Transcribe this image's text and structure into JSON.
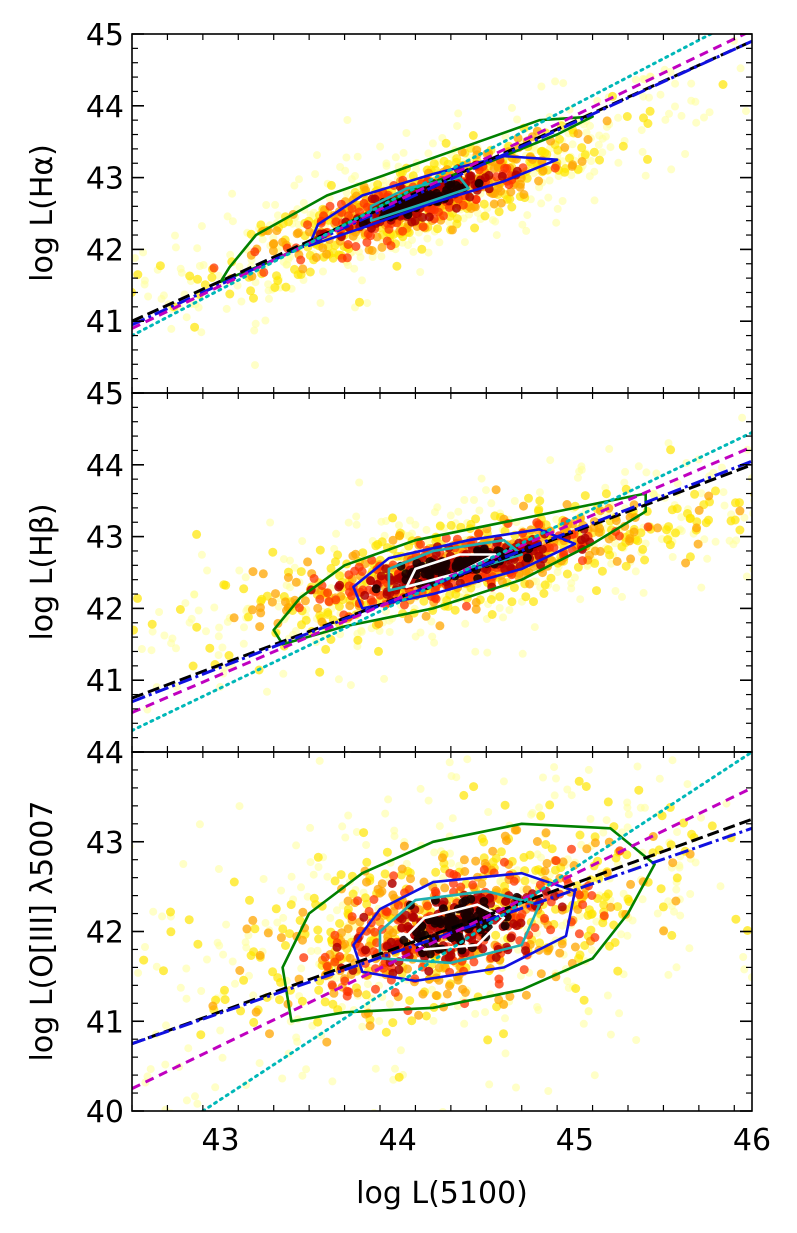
{
  "chart_data": {
    "type": "scatter",
    "x_axis": {
      "label": "log L(5100)",
      "xlim": [
        42.5,
        46
      ],
      "major_ticks": [
        43,
        44,
        45,
        46
      ],
      "tick_labels": [
        "43",
        "44",
        "45",
        "46"
      ]
    },
    "panels": [
      {
        "name": "halpha",
        "ylabel": "log L(Hα)",
        "ylim": [
          40,
          45
        ],
        "tick_values": [
          41,
          42,
          43,
          44,
          45
        ],
        "tick_labels": [
          "41",
          "42",
          "43",
          "44",
          "45"
        ],
        "cloud": {
          "cx": 44.1,
          "cy": 42.65,
          "sx": 0.55,
          "slope": 0.82,
          "width": 0.28
        },
        "contours": [
          {
            "level": "outer",
            "color": "#008000",
            "points": [
              [
                43.0,
                41.55
              ],
              [
                43.3,
                41.85
              ],
              [
                43.7,
                42.35
              ],
              [
                44.1,
                42.85
              ],
              [
                44.5,
                43.2
              ],
              [
                44.9,
                43.6
              ],
              [
                45.1,
                43.85
              ],
              [
                44.8,
                43.8
              ],
              [
                44.4,
                43.45
              ],
              [
                44.0,
                43.1
              ],
              [
                43.6,
                42.75
              ],
              [
                43.2,
                42.2
              ],
              [
                43.05,
                41.75
              ]
            ]
          },
          {
            "level": "middle",
            "color": "#1010e0",
            "points": [
              [
                43.5,
                42.05
              ],
              [
                43.8,
                42.3
              ],
              [
                44.2,
                42.65
              ],
              [
                44.6,
                42.95
              ],
              [
                44.9,
                43.25
              ],
              [
                44.6,
                43.3
              ],
              [
                44.2,
                43.05
              ],
              [
                43.8,
                42.75
              ],
              [
                43.55,
                42.35
              ]
            ]
          },
          {
            "level": "inner",
            "color": "#20b0b0",
            "points": [
              [
                43.85,
                42.4
              ],
              [
                44.1,
                42.6
              ],
              [
                44.4,
                42.85
              ],
              [
                44.35,
                43.0
              ],
              [
                44.05,
                42.85
              ],
              [
                43.85,
                42.6
              ]
            ]
          }
        ],
        "fits": [
          {
            "style": "black-dashed",
            "color": "#000000",
            "points": [
              [
                42.5,
                41.0
              ],
              [
                46,
                44.9
              ]
            ]
          },
          {
            "style": "blue-dashdot",
            "color": "#1010e0",
            "points": [
              [
                42.5,
                40.95
              ],
              [
                46,
                44.9
              ]
            ]
          },
          {
            "style": "magenta-dashed",
            "color": "#c000c0",
            "points": [
              [
                42.5,
                40.9
              ],
              [
                46,
                45.05
              ]
            ]
          },
          {
            "style": "cyan-dotted",
            "color": "#00b8b8",
            "points": [
              [
                42.5,
                40.8
              ],
              [
                46,
                45.3
              ]
            ]
          }
        ]
      },
      {
        "name": "hbeta",
        "ylabel": "log L(Hβ)",
        "ylim": [
          40,
          45
        ],
        "tick_values": [
          41,
          42,
          43,
          44,
          45
        ],
        "tick_labels": [
          "41",
          "42",
          "43",
          "44",
          "45"
        ],
        "cloud": {
          "cx": 44.35,
          "cy": 42.6,
          "sx": 0.75,
          "slope": 0.55,
          "width": 0.35
        },
        "contours": [
          {
            "level": "outer",
            "color": "#008000",
            "points": [
              [
                43.35,
                41.5
              ],
              [
                43.7,
                41.75
              ],
              [
                44.2,
                42.0
              ],
              [
                44.7,
                42.4
              ],
              [
                45.1,
                42.9
              ],
              [
                45.4,
                43.35
              ],
              [
                45.4,
                43.6
              ],
              [
                45.0,
                43.4
              ],
              [
                44.6,
                43.2
              ],
              [
                44.1,
                42.95
              ],
              [
                43.7,
                42.6
              ],
              [
                43.45,
                42.15
              ],
              [
                43.3,
                41.7
              ]
            ]
          },
          {
            "level": "middle",
            "color": "#1010e0",
            "points": [
              [
                43.8,
                42.0
              ],
              [
                44.2,
                42.2
              ],
              [
                44.7,
                42.55
              ],
              [
                45.0,
                42.9
              ],
              [
                44.8,
                43.1
              ],
              [
                44.4,
                42.95
              ],
              [
                43.95,
                42.7
              ],
              [
                43.75,
                42.3
              ]
            ]
          },
          {
            "level": "inner",
            "color": "#20b0b0",
            "points": [
              [
                43.95,
                42.25
              ],
              [
                44.3,
                42.45
              ],
              [
                44.7,
                42.75
              ],
              [
                44.6,
                42.95
              ],
              [
                44.2,
                42.8
              ],
              [
                43.95,
                42.55
              ]
            ]
          },
          {
            "level": "core",
            "color": "#ffffff",
            "points": [
              [
                44.05,
                42.3
              ],
              [
                44.35,
                42.5
              ],
              [
                44.55,
                42.75
              ],
              [
                44.35,
                42.75
              ],
              [
                44.1,
                42.55
              ]
            ]
          }
        ],
        "fits": [
          {
            "style": "black-dashed",
            "color": "#000000",
            "points": [
              [
                42.5,
                40.75
              ],
              [
                46,
                44.0
              ]
            ]
          },
          {
            "style": "blue-dashdot",
            "color": "#1010e0",
            "points": [
              [
                42.5,
                40.7
              ],
              [
                46,
                44.05
              ]
            ]
          },
          {
            "style": "magenta-dashed",
            "color": "#c000c0",
            "points": [
              [
                42.5,
                40.55
              ],
              [
                46,
                44.25
              ]
            ]
          },
          {
            "style": "cyan-dotted",
            "color": "#00b8b8",
            "points": [
              [
                42.5,
                40.3
              ],
              [
                46,
                44.45
              ]
            ]
          }
        ]
      },
      {
        "name": "oiii",
        "ylabel": "log L(O[III] λ5007",
        "ylim": [
          40,
          44
        ],
        "tick_values": [
          40,
          41,
          42,
          43,
          44
        ],
        "tick_labels": [
          "40",
          "41",
          "42",
          "43",
          "44"
        ],
        "cloud": {
          "cx": 44.3,
          "cy": 42.05,
          "sx": 0.7,
          "slope": 0.45,
          "width": 0.55
        },
        "contours": [
          {
            "level": "outer",
            "color": "#008000",
            "points": [
              [
                43.4,
                41.0
              ],
              [
                43.7,
                41.1
              ],
              [
                44.2,
                41.15
              ],
              [
                44.7,
                41.35
              ],
              [
                45.1,
                41.7
              ],
              [
                45.3,
                42.2
              ],
              [
                45.45,
                42.75
              ],
              [
                45.2,
                43.15
              ],
              [
                44.7,
                43.2
              ],
              [
                44.2,
                43.0
              ],
              [
                43.8,
                42.65
              ],
              [
                43.5,
                42.2
              ],
              [
                43.35,
                41.6
              ]
            ]
          },
          {
            "level": "middle",
            "color": "#1010e0",
            "points": [
              [
                43.8,
                41.55
              ],
              [
                44.1,
                41.45
              ],
              [
                44.6,
                41.6
              ],
              [
                44.95,
                41.95
              ],
              [
                45.0,
                42.45
              ],
              [
                44.7,
                42.65
              ],
              [
                44.2,
                42.55
              ],
              [
                43.9,
                42.25
              ],
              [
                43.75,
                41.85
              ]
            ]
          },
          {
            "level": "inner",
            "color": "#20b0b0",
            "points": [
              [
                43.9,
                41.7
              ],
              [
                44.3,
                41.65
              ],
              [
                44.7,
                41.85
              ],
              [
                44.8,
                42.3
              ],
              [
                44.5,
                42.45
              ],
              [
                44.1,
                42.35
              ],
              [
                43.9,
                42.0
              ]
            ]
          },
          {
            "level": "core",
            "color": "#ffffff",
            "points": [
              [
                44.15,
                41.8
              ],
              [
                44.45,
                41.85
              ],
              [
                44.6,
                42.15
              ],
              [
                44.45,
                42.3
              ],
              [
                44.15,
                42.15
              ],
              [
                44.05,
                41.95
              ]
            ]
          }
        ],
        "fits": [
          {
            "style": "black-dashed",
            "color": "#000000",
            "points": [
              [
                42.5,
                40.75
              ],
              [
                46,
                43.25
              ]
            ]
          },
          {
            "style": "blue-dashdot",
            "color": "#1010e0",
            "points": [
              [
                42.5,
                40.75
              ],
              [
                46,
                43.15
              ]
            ]
          },
          {
            "style": "magenta-dashed",
            "color": "#c000c0",
            "points": [
              [
                42.5,
                40.25
              ],
              [
                46,
                43.6
              ]
            ]
          },
          {
            "style": "cyan-dotted",
            "color": "#00b8b8",
            "points": [
              [
                42.9,
                40.0
              ],
              [
                46,
                44.0
              ]
            ]
          }
        ]
      }
    ]
  }
}
